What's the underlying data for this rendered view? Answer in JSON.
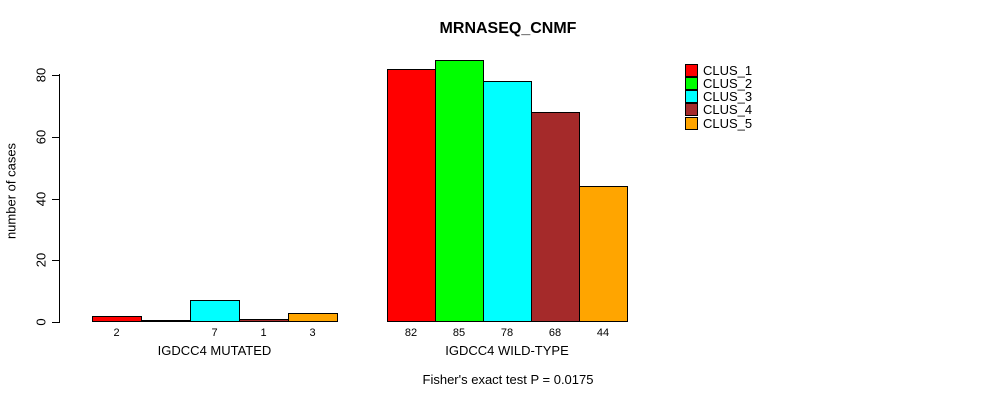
{
  "title": "MRNASEQ_CNMF",
  "y_axis": {
    "label": "number of cases"
  },
  "footnote": "Fisher's exact test P = 0.0175",
  "chart_data": {
    "type": "bar",
    "title": "MRNASEQ_CNMF",
    "xlabel": "",
    "ylabel": "number of cases",
    "ylim": [
      0,
      85
    ],
    "yticks": [
      0,
      20,
      40,
      60,
      80
    ],
    "grid": false,
    "legend_position": "right",
    "background": "#ffffff",
    "bar_border_color": "#000000",
    "categories": [
      "IGDCC4 MUTATED",
      "IGDCC4 WILD-TYPE"
    ],
    "series": [
      {
        "name": "CLUS_1",
        "color": "#ff0000",
        "values": [
          2,
          82
        ]
      },
      {
        "name": "CLUS_2",
        "color": "#00ff00",
        "values": [
          0,
          85
        ]
      },
      {
        "name": "CLUS_3",
        "color": "#00ffff",
        "values": [
          7,
          78
        ]
      },
      {
        "name": "CLUS_4",
        "color": "#a52a2a",
        "values": [
          1,
          68
        ]
      },
      {
        "name": "CLUS_5",
        "color": "#ffa500",
        "values": [
          3,
          44
        ]
      }
    ],
    "bar_value_labels": [
      [
        "2",
        "",
        "7",
        "1",
        "3"
      ],
      [
        "82",
        "85",
        "78",
        "68",
        "44"
      ]
    ],
    "annotation": "Fisher's exact test P = 0.0175"
  }
}
